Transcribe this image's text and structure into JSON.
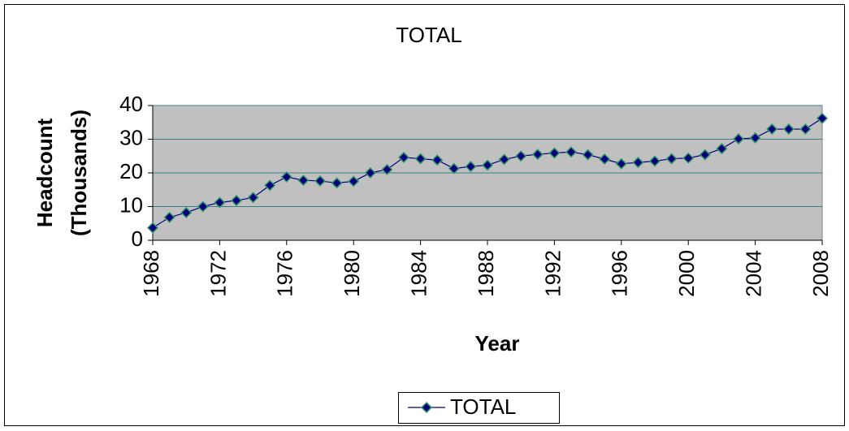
{
  "chart_data": {
    "type": "line",
    "title": "TOTAL",
    "xlabel": "Year",
    "ylabel": [
      "Headcount",
      "(Thousands)"
    ],
    "x": [
      1968,
      1969,
      1970,
      1971,
      1972,
      1973,
      1974,
      1975,
      1976,
      1977,
      1978,
      1979,
      1980,
      1981,
      1982,
      1983,
      1984,
      1985,
      1986,
      1987,
      1988,
      1989,
      1990,
      1991,
      1992,
      1993,
      1994,
      1995,
      1996,
      1997,
      1998,
      1999,
      2000,
      2001,
      2002,
      2003,
      2004,
      2005,
      2006,
      2007,
      2008
    ],
    "series": [
      {
        "name": "TOTAL",
        "color": "#000080",
        "marker_edge_color": "#339966",
        "values": [
          3.7,
          6.8,
          8.2,
          10,
          11.2,
          11.8,
          12.7,
          16.3,
          18.8,
          17.8,
          17.6,
          17,
          17.5,
          20,
          21,
          24.6,
          24.2,
          23.8,
          21.3,
          21.9,
          22.3,
          24,
          25,
          25.5,
          25.9,
          26.2,
          25.4,
          24.1,
          22.7,
          23.1,
          23.5,
          24.2,
          24.4,
          25.4,
          27.2,
          30.1,
          30.4,
          33,
          33,
          33,
          36.2
        ]
      }
    ],
    "xlim": [
      1968,
      2008
    ],
    "xticks": [
      1968,
      1972,
      1976,
      1980,
      1984,
      1988,
      1992,
      1996,
      2000,
      2004,
      2008
    ],
    "ylim": [
      0,
      40
    ],
    "yticks": [
      0,
      10,
      20,
      30,
      40
    ],
    "grid": true,
    "plot_background": "#c0c0c0",
    "grid_color": "#3a7f7f",
    "legend": "bottom"
  }
}
